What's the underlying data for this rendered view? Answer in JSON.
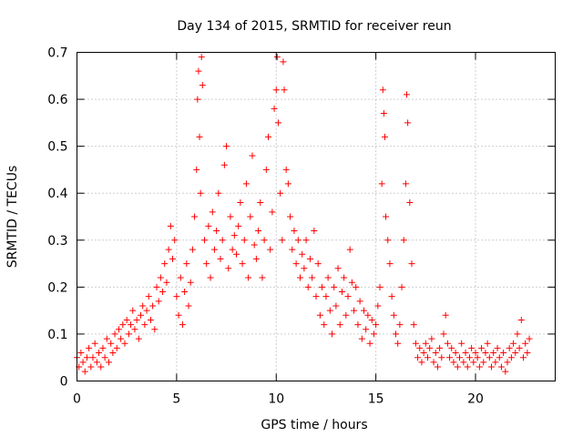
{
  "chart_data": {
    "type": "scatter",
    "title": "Day 134 of 2015, SRMTID for receiver reun",
    "xlabel": "GPS time / hours",
    "ylabel": "SRMTID / TECUs",
    "xlim": [
      0,
      24
    ],
    "ylim": [
      0,
      0.7
    ],
    "xticks": [
      0,
      5,
      10,
      15,
      20
    ],
    "xtick_labels": [
      "0",
      "5",
      "10",
      "15",
      "20"
    ],
    "yticks": [
      0,
      0.1,
      0.2,
      0.3,
      0.4,
      0.5,
      0.6,
      0.7
    ],
    "ytick_labels": [
      "0",
      "0.1",
      "0.2",
      "0.3",
      "0.4",
      "0.5",
      "0.6",
      "0.7"
    ],
    "grid": true,
    "marker": "+",
    "marker_color": "#ff0000",
    "series": [
      {
        "name": "SRMTID",
        "points": [
          [
            0.0,
            0.05
          ],
          [
            0.1,
            0.03
          ],
          [
            0.2,
            0.06
          ],
          [
            0.3,
            0.04
          ],
          [
            0.4,
            0.02
          ],
          [
            0.5,
            0.05
          ],
          [
            0.6,
            0.07
          ],
          [
            0.7,
            0.03
          ],
          [
            0.8,
            0.05
          ],
          [
            0.9,
            0.08
          ],
          [
            1.0,
            0.04
          ],
          [
            1.1,
            0.06
          ],
          [
            1.2,
            0.03
          ],
          [
            1.3,
            0.07
          ],
          [
            1.4,
            0.05
          ],
          [
            1.5,
            0.09
          ],
          [
            1.6,
            0.04
          ],
          [
            1.7,
            0.08
          ],
          [
            1.8,
            0.06
          ],
          [
            1.9,
            0.1
          ],
          [
            2.0,
            0.07
          ],
          [
            2.1,
            0.11
          ],
          [
            2.2,
            0.09
          ],
          [
            2.3,
            0.12
          ],
          [
            2.4,
            0.08
          ],
          [
            2.5,
            0.13
          ],
          [
            2.6,
            0.1
          ],
          [
            2.7,
            0.12
          ],
          [
            2.8,
            0.15
          ],
          [
            2.9,
            0.11
          ],
          [
            3.0,
            0.13
          ],
          [
            3.1,
            0.09
          ],
          [
            3.2,
            0.14
          ],
          [
            3.3,
            0.16
          ],
          [
            3.4,
            0.12
          ],
          [
            3.5,
            0.15
          ],
          [
            3.6,
            0.18
          ],
          [
            3.7,
            0.13
          ],
          [
            3.8,
            0.16
          ],
          [
            3.9,
            0.11
          ],
          [
            4.0,
            0.2
          ],
          [
            4.1,
            0.17
          ],
          [
            4.2,
            0.22
          ],
          [
            4.3,
            0.19
          ],
          [
            4.4,
            0.25
          ],
          [
            4.5,
            0.21
          ],
          [
            4.6,
            0.28
          ],
          [
            4.7,
            0.33
          ],
          [
            4.8,
            0.26
          ],
          [
            4.9,
            0.3
          ],
          [
            5.0,
            0.18
          ],
          [
            5.1,
            0.14
          ],
          [
            5.2,
            0.22
          ],
          [
            5.3,
            0.12
          ],
          [
            5.4,
            0.19
          ],
          [
            5.5,
            0.25
          ],
          [
            5.6,
            0.16
          ],
          [
            5.7,
            0.21
          ],
          [
            5.8,
            0.28
          ],
          [
            5.9,
            0.35
          ],
          [
            6.0,
            0.45
          ],
          [
            6.05,
            0.6
          ],
          [
            6.1,
            0.66
          ],
          [
            6.15,
            0.52
          ],
          [
            6.2,
            0.4
          ],
          [
            6.25,
            0.69
          ],
          [
            6.3,
            0.63
          ],
          [
            6.4,
            0.3
          ],
          [
            6.5,
            0.25
          ],
          [
            6.6,
            0.33
          ],
          [
            6.7,
            0.22
          ],
          [
            6.8,
            0.36
          ],
          [
            6.9,
            0.28
          ],
          [
            7.0,
            0.32
          ],
          [
            7.1,
            0.4
          ],
          [
            7.2,
            0.26
          ],
          [
            7.3,
            0.3
          ],
          [
            7.4,
            0.46
          ],
          [
            7.5,
            0.5
          ],
          [
            7.6,
            0.24
          ],
          [
            7.7,
            0.35
          ],
          [
            7.8,
            0.28
          ],
          [
            7.9,
            0.31
          ],
          [
            8.0,
            0.27
          ],
          [
            8.1,
            0.33
          ],
          [
            8.2,
            0.38
          ],
          [
            8.3,
            0.25
          ],
          [
            8.4,
            0.3
          ],
          [
            8.5,
            0.42
          ],
          [
            8.6,
            0.22
          ],
          [
            8.7,
            0.35
          ],
          [
            8.8,
            0.48
          ],
          [
            8.9,
            0.29
          ],
          [
            9.0,
            0.26
          ],
          [
            9.1,
            0.32
          ],
          [
            9.2,
            0.38
          ],
          [
            9.3,
            0.22
          ],
          [
            9.4,
            0.3
          ],
          [
            9.5,
            0.45
          ],
          [
            9.6,
            0.52
          ],
          [
            9.7,
            0.28
          ],
          [
            9.8,
            0.36
          ],
          [
            9.9,
            0.58
          ],
          [
            10.0,
            0.62
          ],
          [
            10.05,
            0.69
          ],
          [
            10.1,
            0.55
          ],
          [
            10.2,
            0.4
          ],
          [
            10.3,
            0.3
          ],
          [
            10.35,
            0.68
          ],
          [
            10.4,
            0.62
          ],
          [
            10.5,
            0.45
          ],
          [
            10.6,
            0.42
          ],
          [
            10.7,
            0.35
          ],
          [
            10.8,
            0.28
          ],
          [
            10.9,
            0.32
          ],
          [
            11.0,
            0.25
          ],
          [
            11.1,
            0.3
          ],
          [
            11.2,
            0.22
          ],
          [
            11.3,
            0.27
          ],
          [
            11.4,
            0.24
          ],
          [
            11.5,
            0.3
          ],
          [
            11.6,
            0.2
          ],
          [
            11.7,
            0.26
          ],
          [
            11.8,
            0.22
          ],
          [
            11.9,
            0.32
          ],
          [
            12.0,
            0.18
          ],
          [
            12.1,
            0.25
          ],
          [
            12.2,
            0.14
          ],
          [
            12.3,
            0.2
          ],
          [
            12.4,
            0.12
          ],
          [
            12.5,
            0.18
          ],
          [
            12.6,
            0.22
          ],
          [
            12.7,
            0.15
          ],
          [
            12.8,
            0.1
          ],
          [
            12.9,
            0.2
          ],
          [
            13.0,
            0.16
          ],
          [
            13.1,
            0.24
          ],
          [
            13.2,
            0.12
          ],
          [
            13.3,
            0.19
          ],
          [
            13.4,
            0.22
          ],
          [
            13.5,
            0.14
          ],
          [
            13.6,
            0.18
          ],
          [
            13.7,
            0.28
          ],
          [
            13.8,
            0.21
          ],
          [
            13.9,
            0.15
          ],
          [
            14.0,
            0.2
          ],
          [
            14.1,
            0.12
          ],
          [
            14.2,
            0.17
          ],
          [
            14.3,
            0.09
          ],
          [
            14.4,
            0.15
          ],
          [
            14.5,
            0.11
          ],
          [
            14.6,
            0.14
          ],
          [
            14.7,
            0.08
          ],
          [
            14.8,
            0.13
          ],
          [
            14.9,
            0.1
          ],
          [
            15.0,
            0.12
          ],
          [
            15.1,
            0.16
          ],
          [
            15.2,
            0.2
          ],
          [
            15.3,
            0.42
          ],
          [
            15.35,
            0.62
          ],
          [
            15.4,
            0.57
          ],
          [
            15.45,
            0.52
          ],
          [
            15.5,
            0.35
          ],
          [
            15.6,
            0.3
          ],
          [
            15.7,
            0.25
          ],
          [
            15.8,
            0.18
          ],
          [
            15.9,
            0.14
          ],
          [
            16.0,
            0.1
          ],
          [
            16.1,
            0.08
          ],
          [
            16.2,
            0.12
          ],
          [
            16.3,
            0.2
          ],
          [
            16.4,
            0.3
          ],
          [
            16.5,
            0.42
          ],
          [
            16.55,
            0.61
          ],
          [
            16.6,
            0.55
          ],
          [
            16.7,
            0.38
          ],
          [
            16.8,
            0.25
          ],
          [
            16.9,
            0.12
          ],
          [
            17.0,
            0.08
          ],
          [
            17.1,
            0.05
          ],
          [
            17.2,
            0.07
          ],
          [
            17.3,
            0.04
          ],
          [
            17.4,
            0.06
          ],
          [
            17.5,
            0.08
          ],
          [
            17.6,
            0.05
          ],
          [
            17.7,
            0.07
          ],
          [
            17.8,
            0.09
          ],
          [
            17.9,
            0.04
          ],
          [
            18.0,
            0.06
          ],
          [
            18.1,
            0.03
          ],
          [
            18.2,
            0.07
          ],
          [
            18.3,
            0.05
          ],
          [
            18.4,
            0.1
          ],
          [
            18.5,
            0.14
          ],
          [
            18.6,
            0.08
          ],
          [
            18.7,
            0.05
          ],
          [
            18.8,
            0.07
          ],
          [
            18.9,
            0.04
          ],
          [
            19.0,
            0.06
          ],
          [
            19.1,
            0.03
          ],
          [
            19.2,
            0.05
          ],
          [
            19.3,
            0.08
          ],
          [
            19.4,
            0.04
          ],
          [
            19.5,
            0.06
          ],
          [
            19.6,
            0.03
          ],
          [
            19.7,
            0.05
          ],
          [
            19.8,
            0.07
          ],
          [
            19.9,
            0.04
          ],
          [
            20.0,
            0.06
          ],
          [
            20.1,
            0.05
          ],
          [
            20.2,
            0.03
          ],
          [
            20.3,
            0.07
          ],
          [
            20.4,
            0.04
          ],
          [
            20.5,
            0.06
          ],
          [
            20.6,
            0.08
          ],
          [
            20.7,
            0.05
          ],
          [
            20.8,
            0.03
          ],
          [
            20.9,
            0.06
          ],
          [
            21.0,
            0.04
          ],
          [
            21.1,
            0.07
          ],
          [
            21.2,
            0.05
          ],
          [
            21.3,
            0.03
          ],
          [
            21.4,
            0.06
          ],
          [
            21.5,
            0.02
          ],
          [
            21.6,
            0.04
          ],
          [
            21.7,
            0.07
          ],
          [
            21.8,
            0.05
          ],
          [
            21.9,
            0.08
          ],
          [
            22.0,
            0.06
          ],
          [
            22.1,
            0.1
          ],
          [
            22.2,
            0.07
          ],
          [
            22.3,
            0.13
          ],
          [
            22.4,
            0.05
          ],
          [
            22.5,
            0.08
          ],
          [
            22.6,
            0.06
          ],
          [
            22.7,
            0.09
          ]
        ]
      }
    ]
  }
}
